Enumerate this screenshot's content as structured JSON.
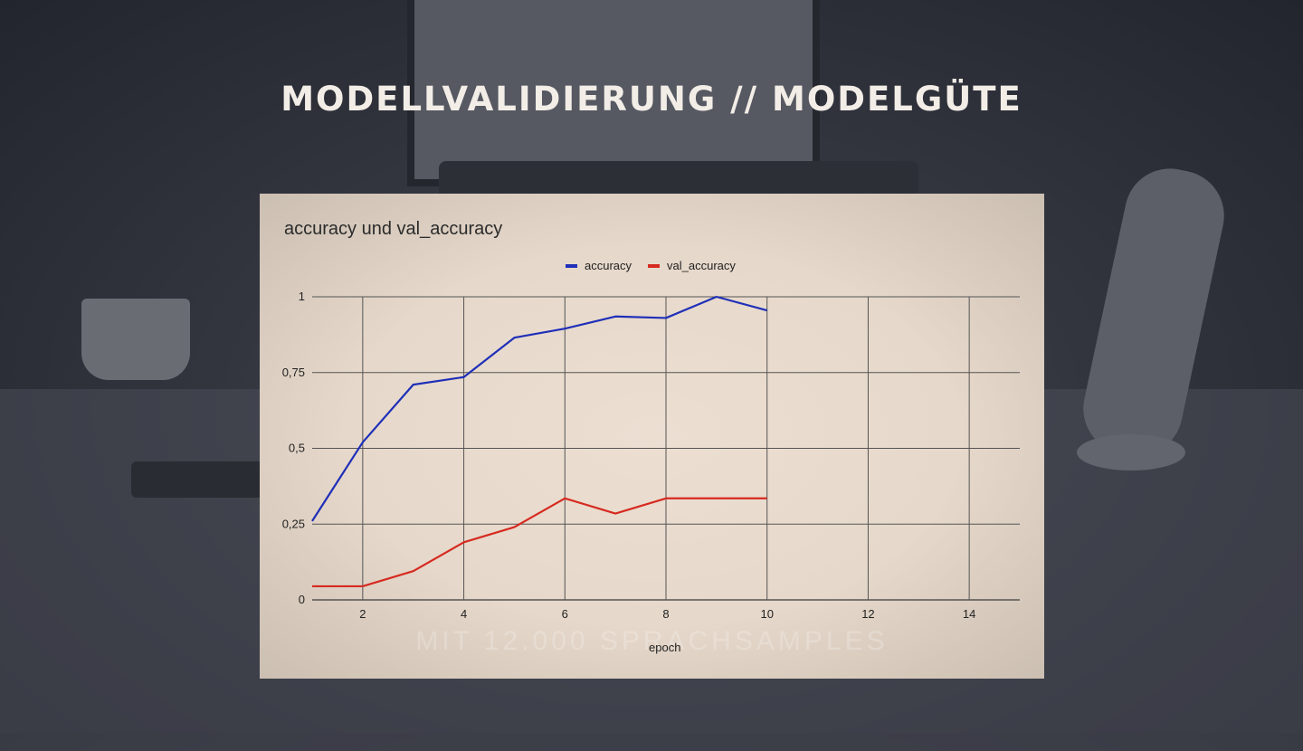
{
  "slide": {
    "title": "MODELLVALIDIERUNG // MODELGÜTE",
    "watermark": "MIT 12.000 SPRACHSAMPLES"
  },
  "colors": {
    "accuracy": "#1f2fb8",
    "val_accuracy": "#d62a20",
    "grid": "#555555"
  },
  "chart_data": {
    "type": "line",
    "title": "accuracy und val_accuracy",
    "xlabel": "epoch",
    "ylabel": "",
    "xlim": [
      1,
      15
    ],
    "ylim": [
      0,
      1
    ],
    "x_ticks": [
      2,
      4,
      6,
      8,
      10,
      12,
      14
    ],
    "y_ticks": [
      0,
      0.25,
      0.5,
      0.75,
      1
    ],
    "y_tick_labels": [
      "0",
      "0,25",
      "0,5",
      "0,75",
      "1"
    ],
    "legend_position": "top-center",
    "grid": true,
    "x": [
      1,
      2,
      3,
      4,
      5,
      6,
      7,
      8,
      9,
      10
    ],
    "series": [
      {
        "name": "accuracy",
        "values": [
          0.26,
          0.52,
          0.71,
          0.735,
          0.865,
          0.895,
          0.935,
          0.93,
          1.0,
          0.955
        ]
      },
      {
        "name": "val_accuracy",
        "values": [
          0.045,
          0.045,
          0.095,
          0.19,
          0.24,
          0.335,
          0.285,
          0.335,
          0.335,
          0.335
        ]
      }
    ]
  }
}
